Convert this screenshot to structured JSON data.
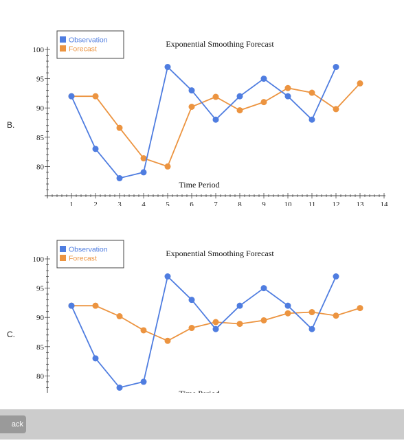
{
  "options": [
    {
      "label": "B.",
      "chart_data": {
        "type": "line",
        "title": "Exponential Smoothing Forecast",
        "xlabel": "Time Period",
        "ylabel": "",
        "x_ticks": [
          1,
          2,
          3,
          4,
          5,
          6,
          7,
          8,
          9,
          10,
          11,
          12,
          13,
          14
        ],
        "y_ticks": [
          80,
          85,
          90,
          95,
          100
        ],
        "xlim": [
          0,
          14
        ],
        "ylim": [
          75,
          100
        ],
        "legend_position": "top-left",
        "series": [
          {
            "name": "Observation",
            "color": "#4f7de0",
            "x": [
              1,
              2,
              3,
              4,
              5,
              6,
              7,
              8,
              9,
              10,
              11,
              12
            ],
            "values": [
              92,
              83,
              78,
              79,
              97,
              93,
              88,
              92,
              95,
              92,
              88,
              97
            ]
          },
          {
            "name": "Forecast",
            "color": "#ec9440",
            "x": [
              1,
              2,
              3,
              4,
              5,
              6,
              7,
              8,
              9,
              10,
              11,
              12,
              13
            ],
            "values": [
              92,
              92,
              86.6,
              81.4,
              80,
              90.2,
              91.9,
              89.6,
              91,
              93.4,
              92.6,
              89.8,
              94.2
            ]
          }
        ]
      }
    },
    {
      "label": "C.",
      "chart_data": {
        "type": "line",
        "title": "Exponential Smoothing Forecast",
        "xlabel": "Time Period",
        "ylabel": "",
        "x_ticks": [],
        "y_ticks": [
          80,
          85,
          90,
          95,
          100
        ],
        "xlim": [
          0,
          14
        ],
        "ylim": [
          75,
          100
        ],
        "legend_position": "top-left",
        "series": [
          {
            "name": "Observation",
            "color": "#4f7de0",
            "x": [
              1,
              2,
              3,
              4,
              5,
              6,
              7,
              8,
              9,
              10,
              11,
              12
            ],
            "values": [
              92,
              83,
              78,
              79,
              97,
              93,
              88,
              92,
              95,
              92,
              88,
              97
            ]
          },
          {
            "name": "Forecast",
            "color": "#ec9440",
            "x": [
              1,
              2,
              3,
              4,
              5,
              6,
              7,
              8,
              9,
              10,
              11,
              12,
              13
            ],
            "values": [
              92,
              92,
              90.2,
              87.8,
              86,
              88.2,
              89.2,
              88.9,
              89.5,
              90.7,
              90.9,
              90.3,
              91.6
            ]
          }
        ]
      }
    }
  ],
  "footer": {
    "back_label": "ack"
  }
}
